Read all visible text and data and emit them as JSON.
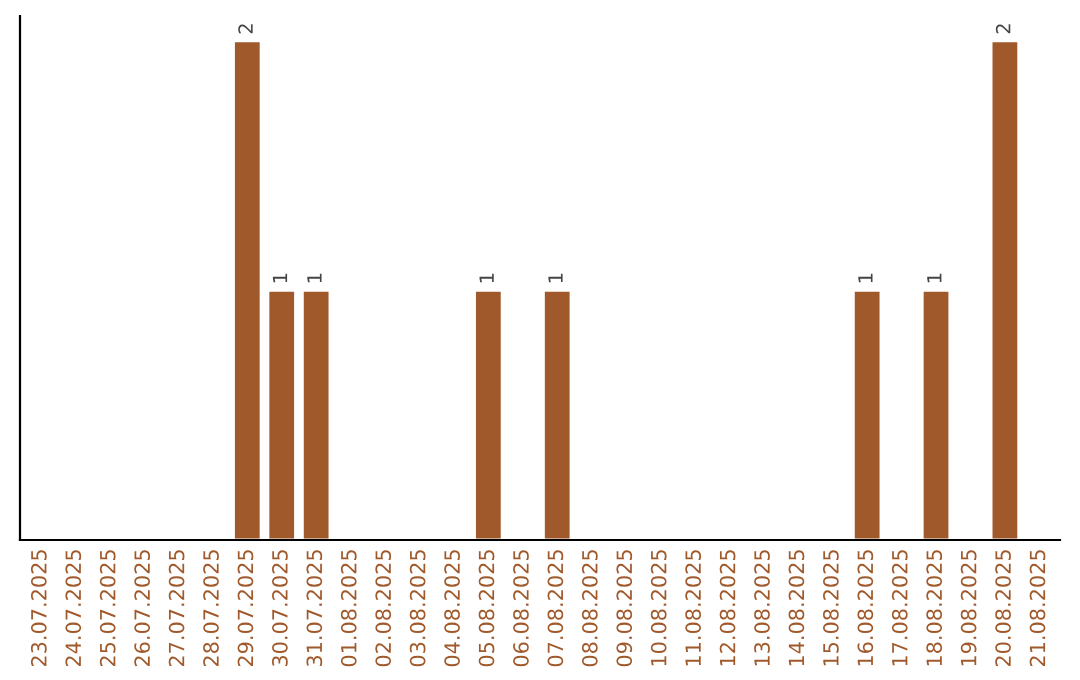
{
  "chart_data": {
    "type": "bar",
    "categories": [
      "23.07.2025",
      "24.07.2025",
      "25.07.2025",
      "26.07.2025",
      "27.07.2025",
      "28.07.2025",
      "29.07.2025",
      "30.07.2025",
      "31.07.2025",
      "01.08.2025",
      "02.08.2025",
      "03.08.2025",
      "04.08.2025",
      "05.08.2025",
      "06.08.2025",
      "07.08.2025",
      "08.08.2025",
      "09.08.2025",
      "10.08.2025",
      "11.08.2025",
      "12.08.2025",
      "13.08.2025",
      "14.08.2025",
      "15.08.2025",
      "16.08.2025",
      "17.08.2025",
      "18.08.2025",
      "19.08.2025",
      "20.08.2025",
      "21.08.2025"
    ],
    "values": [
      null,
      null,
      null,
      null,
      null,
      null,
      2,
      1,
      1,
      null,
      null,
      null,
      null,
      1,
      null,
      1,
      null,
      null,
      null,
      null,
      null,
      null,
      null,
      null,
      1,
      null,
      1,
      null,
      2,
      null
    ],
    "color": "#a0592b",
    "data_labels": true,
    "tick_labels": "x",
    "grid": false,
    "legend": false
  }
}
